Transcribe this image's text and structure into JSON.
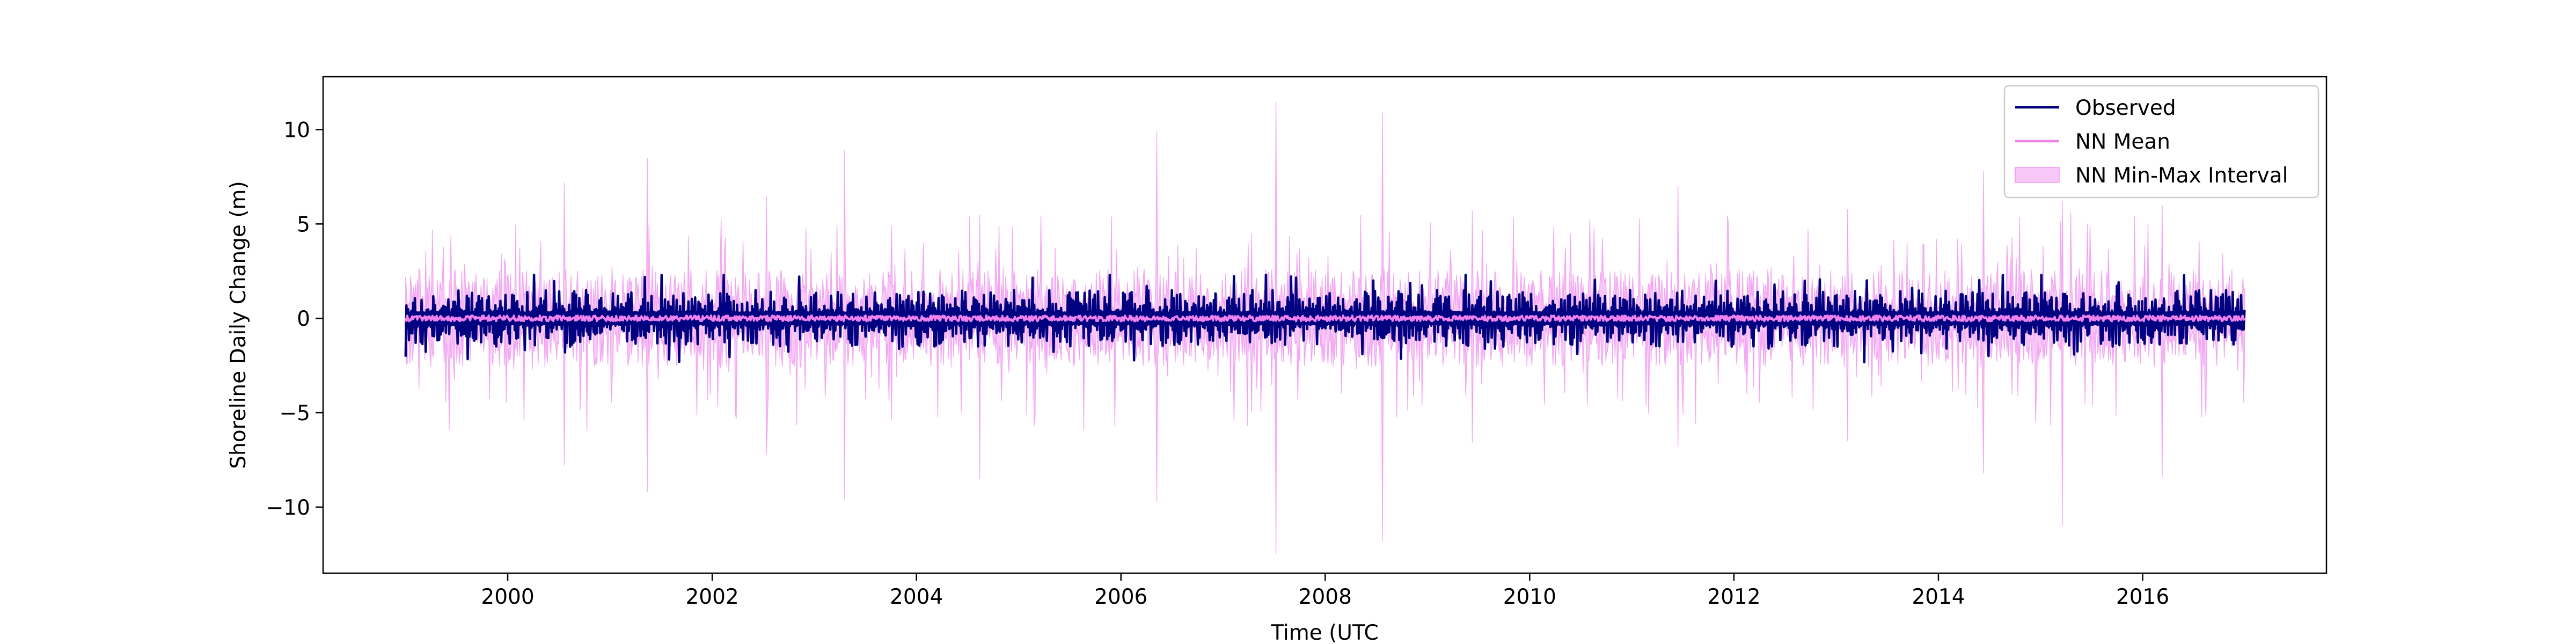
{
  "chart_data": {
    "type": "line",
    "title": "",
    "xlabel": "Time (UTC",
    "ylabel": "Shoreline Daily Change (m)",
    "x_range": [
      "1998-03-12",
      "2017-10-19"
    ],
    "ylim": [
      -13.5,
      12.8
    ],
    "x_ticks": [
      "2000",
      "2002",
      "2004",
      "2006",
      "2008",
      "2010",
      "2012",
      "2014",
      "2016"
    ],
    "y_ticks": [
      -10,
      -5,
      0,
      5,
      10
    ],
    "grid": false,
    "legend_position": "top-right",
    "series": [
      {
        "name": "Observed",
        "type": "line",
        "color": "#000080",
        "generator": {
          "start": "1999-01-01",
          "end": "2016-12-31",
          "step_days": 3,
          "typical_amplitude": 1.0,
          "max_positive": 2.3,
          "max_negative": -3.4
        }
      },
      {
        "name": "NN Mean",
        "type": "line",
        "color": "#ee82ee",
        "generator": {
          "start": "1999-01-01",
          "end": "2016-12-31",
          "step_days": 3,
          "typical_amplitude": 0.15
        }
      },
      {
        "name": "NN Min-Max Interval",
        "type": "area",
        "color": "#ee82ee",
        "generator": {
          "start": "1999-01-01",
          "end": "2016-12-31",
          "step_days": 3,
          "typical_amplitude": 1.5
        },
        "spikes": [
          {
            "date": "2007-07-10",
            "upper": 11.5,
            "lower": -12.5
          },
          {
            "date": "2008-07-25",
            "upper": 10.9,
            "lower": -11.8
          },
          {
            "date": "2003-04-20",
            "upper": 8.9,
            "lower": -9.6
          },
          {
            "date": "2001-05-15",
            "upper": 8.5,
            "lower": -9.2
          },
          {
            "date": "2000-07-20",
            "upper": 7.2,
            "lower": -7.8
          },
          {
            "date": "2006-05-10",
            "upper": 9.9,
            "lower": -9.7
          },
          {
            "date": "2002-07-15",
            "upper": 6.5,
            "lower": -7.2
          },
          {
            "date": "2011-06-15",
            "upper": 7.0,
            "lower": -6.8
          },
          {
            "date": "2014-06-10",
            "upper": 7.8,
            "lower": -8.2
          },
          {
            "date": "2015-03-20",
            "upper": 6.2,
            "lower": -11.0
          },
          {
            "date": "2016-03-10",
            "upper": 6.0,
            "lower": -8.4
          },
          {
            "date": "2004-08-15",
            "upper": 5.5,
            "lower": -8.5
          },
          {
            "date": "2009-06-10",
            "upper": 5.7,
            "lower": -6.6
          },
          {
            "date": "2013-02-10",
            "upper": 5.8,
            "lower": -6.5
          }
        ]
      }
    ]
  }
}
